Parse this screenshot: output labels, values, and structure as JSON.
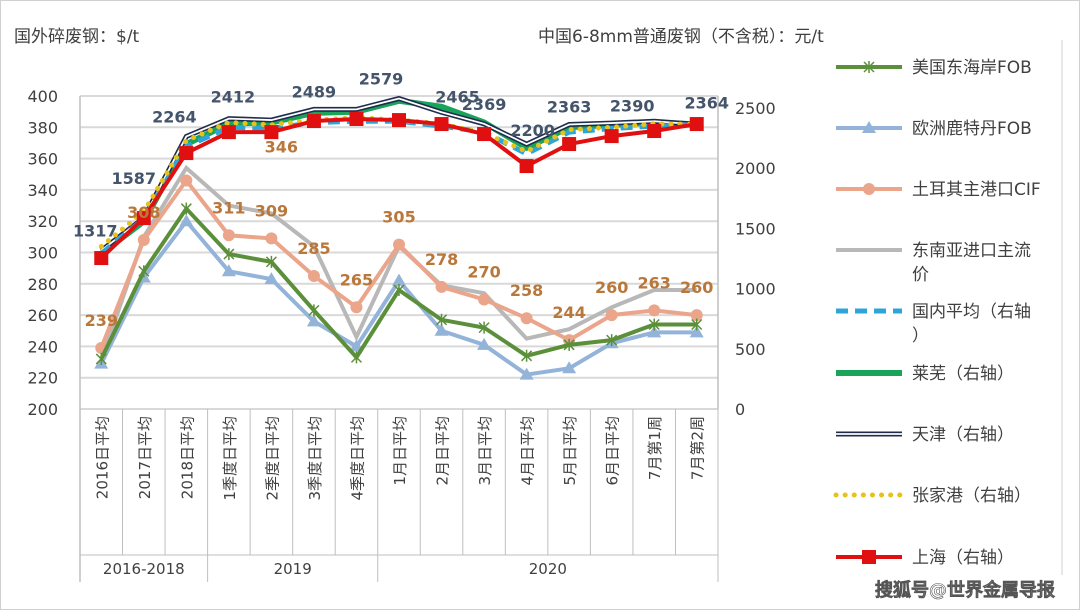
{
  "chart_data": {
    "type": "line",
    "left_axis_title": "国外碎废钢：$/t",
    "right_axis_title": "中国6-8mm普通废钢（不含税）：元/t",
    "ylim_left": [
      200,
      400
    ],
    "ylim_right": [
      0,
      2600
    ],
    "left_ticks": [
      "200",
      "220",
      "240",
      "260",
      "280",
      "300",
      "320",
      "340",
      "360",
      "380",
      "400"
    ],
    "right_ticks": [
      "0",
      "500",
      "1000",
      "1500",
      "2000",
      "2500"
    ],
    "grid": true,
    "legend_position": "right",
    "categories": [
      "2016日平均",
      "2017日平均",
      "2018日平均",
      "1季度日平均",
      "2季度日平均",
      "3季度日平均",
      "4季度日平均",
      "1月日平均",
      "2月日平均",
      "3月日平均",
      "4月日平均",
      "5月日平均",
      "6月日平均",
      "7月第1周",
      "7月第2周"
    ],
    "groups": [
      {
        "label": "2016-2018",
        "span": 3
      },
      {
        "label": "2019",
        "span": 4
      },
      {
        "label": "2020",
        "span": 8
      }
    ],
    "series": [
      {
        "name": "美国东海岸FOB",
        "axis": "left",
        "color": "#5b8f3a",
        "marker": "x",
        "values": [
          232,
          288,
          328,
          299,
          294,
          263,
          233,
          276,
          257,
          252,
          234,
          241,
          244,
          254,
          254
        ]
      },
      {
        "name": "欧洲鹿特丹FOB",
        "axis": "left",
        "color": "#93b3d9",
        "marker": "triangle",
        "values": [
          229,
          284,
          320,
          288,
          283,
          256,
          240,
          282,
          250,
          241,
          222,
          226,
          242,
          249,
          249
        ]
      },
      {
        "name": "土耳其主港口CIF",
        "axis": "left",
        "color": "#eaa58a",
        "marker": "circle",
        "values": [
          239,
          308,
          346,
          311,
          309,
          285,
          265,
          305,
          278,
          270,
          258,
          244,
          260,
          263,
          260
        ]
      },
      {
        "name": "东南亚进口主流价",
        "axis": "left",
        "color": "#b8b8b8",
        "marker": "none",
        "values": [
          231,
          310,
          354,
          330,
          325,
          304,
          246,
          304,
          279,
          274,
          245,
          251,
          265,
          276,
          276
        ]
      },
      {
        "name": "国内平均（右轴）",
        "axis": "right",
        "color": "#2ea5d8",
        "marker": "dash",
        "values": [
          1290,
          1580,
          2180,
          2340,
          2330,
          2380,
          2390,
          2390,
          2350,
          2300,
          2120,
          2300,
          2330,
          2350,
          2360
        ]
      },
      {
        "name": "莱芜（右轴）",
        "axis": "right",
        "color": "#1aa45a",
        "marker": "none",
        "values": [
          1290,
          1560,
          2200,
          2370,
          2380,
          2460,
          2470,
          2560,
          2510,
          2380,
          2170,
          2340,
          2360,
          2380,
          2364
        ]
      },
      {
        "name": "天津（右轴）",
        "axis": "right",
        "color": "#1f2d4d",
        "marker": "double",
        "values": [
          1317,
          1587,
          2264,
          2412,
          2400,
          2489,
          2489,
          2579,
          2465,
          2369,
          2200,
          2363,
          2375,
          2390,
          2364
        ]
      },
      {
        "name": "张家港（右轴）",
        "axis": "right",
        "color": "#e8c21a",
        "marker": "dot",
        "values": [
          1350,
          1640,
          2230,
          2380,
          2360,
          2400,
          2420,
          2400,
          2370,
          2290,
          2140,
          2320,
          2340,
          2370,
          2364
        ]
      },
      {
        "name": "上海（右轴）",
        "axis": "right",
        "color": "#e01010",
        "marker": "square",
        "values": [
          1254,
          1586,
          2126,
          2300,
          2300,
          2392,
          2409,
          2400,
          2367,
          2284,
          2018,
          2201,
          2267,
          2309,
          2367
        ]
      }
    ],
    "data_labels_dark": [
      {
        "index": 0,
        "text": "1317"
      },
      {
        "index": 1,
        "text": "1587"
      },
      {
        "index": 2,
        "text": "2264"
      },
      {
        "index": 3,
        "text": "2412"
      },
      {
        "index": 5,
        "text": "2489"
      },
      {
        "index": 7,
        "text": "2579"
      },
      {
        "index": 8,
        "text": "2465"
      },
      {
        "index": 9,
        "text": "2369"
      },
      {
        "index": 10,
        "text": "2200"
      },
      {
        "index": 11,
        "text": "2363"
      },
      {
        "index": 13,
        "text": "2390"
      },
      {
        "index": 14,
        "text": "2364"
      }
    ],
    "data_labels_orange": [
      "239",
      "308",
      "346",
      "311",
      "309",
      "285",
      "265",
      "305",
      "278",
      "270",
      "258",
      "244",
      "260",
      "263",
      "260"
    ]
  },
  "watermark": "搜狐号@世界金属导报"
}
